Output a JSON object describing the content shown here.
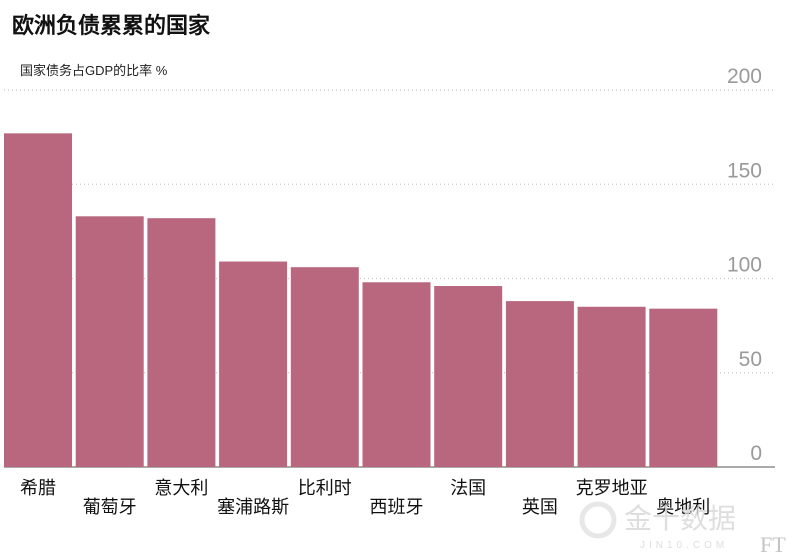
{
  "chart_data": {
    "type": "bar",
    "title": "欧洲负债累累的国家",
    "subtitle": "国家债务占GDP的比率 %",
    "categories": [
      "希腊",
      "葡萄牙",
      "意大利",
      "塞浦路斯",
      "比利时",
      "西班牙",
      "法国",
      "英国",
      "克罗地亚",
      "奥地利"
    ],
    "values": [
      177,
      133,
      132,
      109,
      106,
      98,
      96,
      88,
      85,
      84
    ],
    "ylim": [
      0,
      200
    ],
    "yticks": [
      0,
      50,
      100,
      150,
      200
    ],
    "ytick_labels": [
      "0",
      "50",
      "100",
      "150",
      "200"
    ],
    "grid": true,
    "bar_color": "#b8677e",
    "source_mark": "FT"
  },
  "watermark": {
    "text": "金十数据",
    "subtext": "JIN10.COM"
  }
}
